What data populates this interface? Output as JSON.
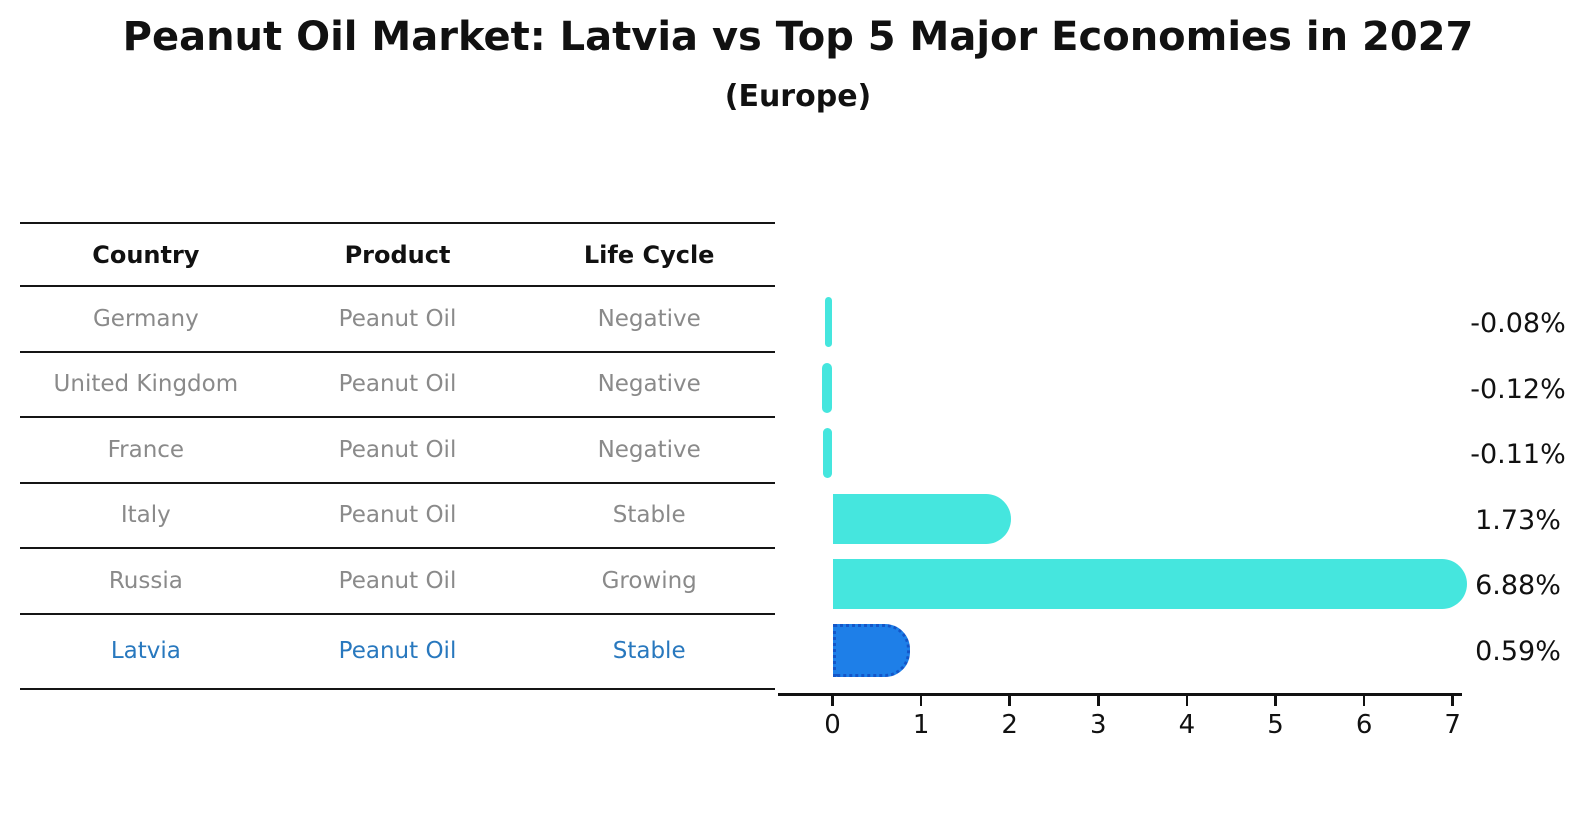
{
  "title": "Peanut Oil Market: Latvia vs Top 5 Major Economies in 2027",
  "subtitle": "(Europe)",
  "table": {
    "headers": [
      "Country",
      "Product",
      "Life Cycle"
    ],
    "rows": [
      {
        "country": "Germany",
        "product": "Peanut Oil",
        "life_cycle": "Negative",
        "highlighted": false
      },
      {
        "country": "United Kingdom",
        "product": "Peanut Oil",
        "life_cycle": "Negative",
        "highlighted": false
      },
      {
        "country": "France",
        "product": "Peanut Oil",
        "life_cycle": "Negative",
        "highlighted": false
      },
      {
        "country": "Italy",
        "product": "Peanut Oil",
        "life_cycle": "Stable",
        "highlighted": false
      },
      {
        "country": "Russia",
        "product": "Peanut Oil",
        "life_cycle": "Growing",
        "highlighted": false
      },
      {
        "country": "Latvia",
        "product": "Peanut Oil",
        "life_cycle": "Stable",
        "highlighted": true
      }
    ]
  },
  "chart_data": {
    "type": "bar",
    "orientation": "horizontal",
    "title": "Peanut Oil Market: Latvia vs Top 5 Major Economies in 2027",
    "subtitle": "(Europe)",
    "categories": [
      "Germany",
      "United Kingdom",
      "France",
      "Italy",
      "Russia",
      "Latvia"
    ],
    "values": [
      -0.08,
      -0.12,
      -0.11,
      1.73,
      6.88,
      0.59
    ],
    "value_labels": [
      "-0.08%",
      "-0.12%",
      "-0.11%",
      "1.73%",
      "6.88%",
      "0.59%"
    ],
    "x_ticks": [
      0,
      1,
      2,
      3,
      4,
      5,
      6,
      7
    ],
    "xlim": [
      -0.6,
      7.1
    ],
    "grid": false,
    "legend": false,
    "highlight_index": 5,
    "colors": {
      "bar": "#45E6DE",
      "highlight_bar": "#1E7FE8",
      "highlight_bar_border": "#1456C8",
      "axis": "#111111"
    }
  },
  "theme": {
    "background": "#FFFFFF",
    "header_text": "#111111",
    "row_text": "#8A8A8A",
    "highlight_text": "#2878BE",
    "value_label_text": "#111111"
  }
}
